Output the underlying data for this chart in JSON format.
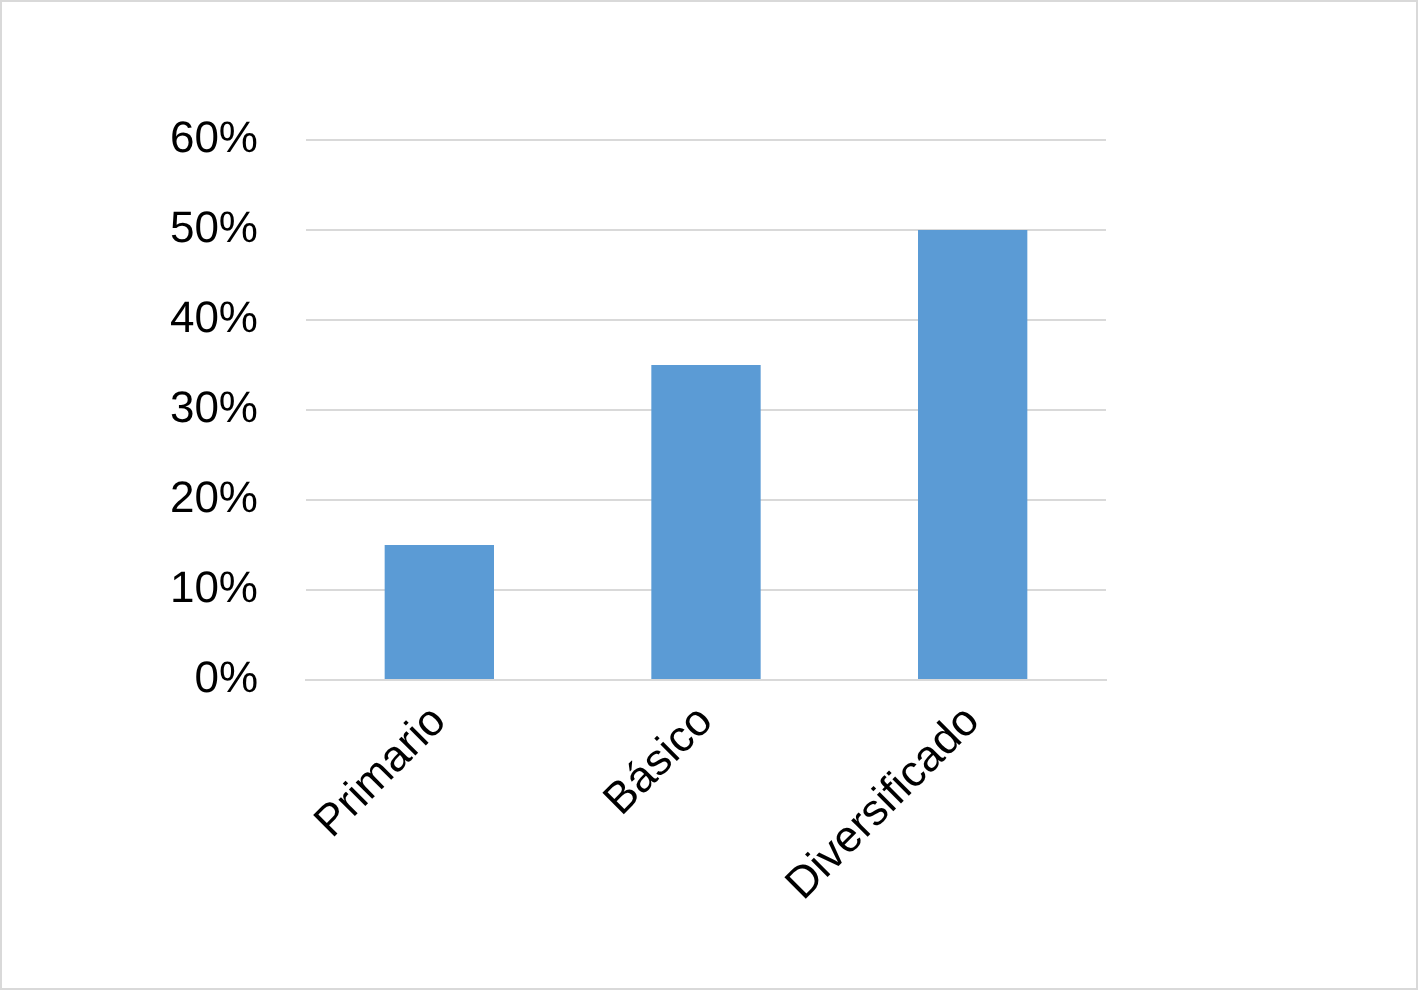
{
  "chart_data": {
    "type": "bar",
    "categories": [
      "Primario",
      "Básico",
      "Diversificado"
    ],
    "values": [
      15,
      35,
      50
    ],
    "color": "#5b9bd5",
    "ylim": [
      0,
      60
    ],
    "yticks": [
      {
        "value": 0,
        "label": "0%"
      },
      {
        "value": 10,
        "label": "10%"
      },
      {
        "value": 20,
        "label": "20%"
      },
      {
        "value": 30,
        "label": "30%"
      },
      {
        "value": 40,
        "label": "40%"
      },
      {
        "value": 50,
        "label": "50%"
      },
      {
        "value": 60,
        "label": "60%"
      }
    ],
    "grid": "y",
    "legend": false
  }
}
